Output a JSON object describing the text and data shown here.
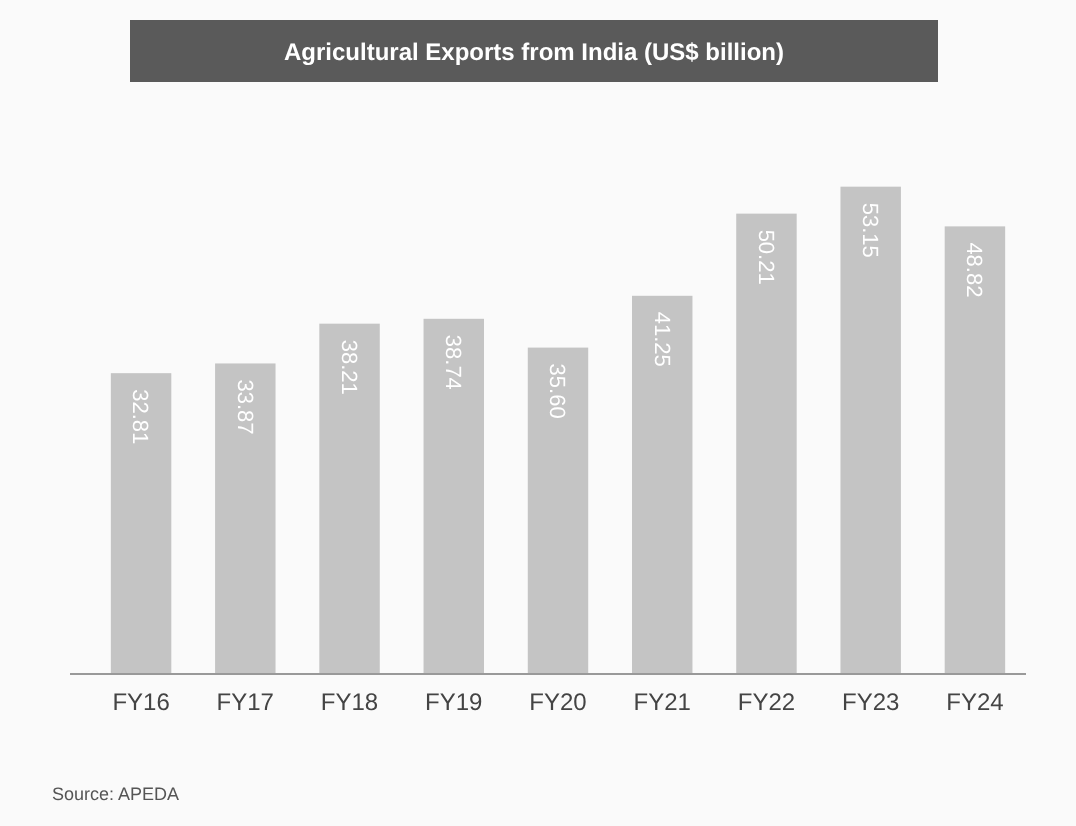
{
  "chart_data": {
    "type": "bar",
    "title": "Agricultural Exports from India (US$ billion)",
    "categories": [
      "FY16",
      "FY17",
      "FY18",
      "FY19",
      "FY20",
      "FY21",
      "FY22",
      "FY23",
      "FY24"
    ],
    "values": [
      32.81,
      33.87,
      38.21,
      38.74,
      35.6,
      41.25,
      50.21,
      53.15,
      48.82
    ],
    "color": "#c4c4c4",
    "value_labels": [
      "32.81",
      "33.87",
      "38.21",
      "38.74",
      "35.60",
      "41.25",
      "50.21",
      "53.15",
      "48.82"
    ],
    "annotations": [
      "Source: APEDA"
    ]
  }
}
